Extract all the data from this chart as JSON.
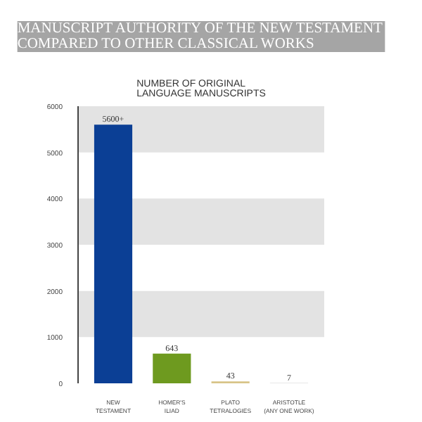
{
  "chart_data": {
    "type": "bar",
    "title": "MANUSCRIPT AUTHORITY OF THE NEW TESTAMENT\nCOMPARED TO OTHER CLASSICAL WORKS",
    "subtitle": "NUMBER OF ORIGINAL\nLANGUAGE MANUSCRIPTS",
    "categories": [
      "NEW\nTESTAMENT",
      "HOMER'S\nILIAD",
      "PLATO\nTETRALOGIES",
      "ARISTOTLE\n(ANY ONE WORK)"
    ],
    "values": [
      5600,
      643,
      43,
      7
    ],
    "value_labels": [
      "5600+",
      "643",
      "43",
      "7"
    ],
    "colors": [
      "#0b3f95",
      "#6e9a1f",
      "#d8c488",
      "#cfcfcf"
    ],
    "ylim": [
      0,
      6000
    ],
    "yticks": [
      0,
      1000,
      2000,
      3000,
      4000,
      5000,
      6000
    ],
    "bands": [
      {
        "axis": "y",
        "from": 1000,
        "to": 2000,
        "color": "#e3e3e3"
      },
      {
        "axis": "y",
        "from": 3000,
        "to": 4000,
        "color": "#e3e3e3"
      },
      {
        "axis": "y",
        "from": 5000,
        "to": 6000,
        "color": "#e3e3e3"
      }
    ],
    "grid": false
  }
}
